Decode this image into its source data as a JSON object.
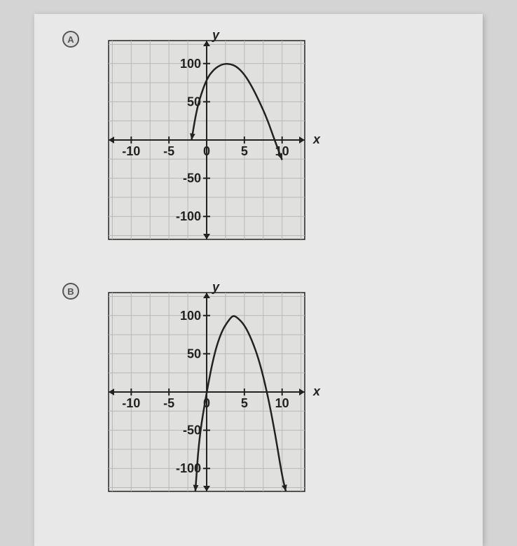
{
  "optionA": {
    "badge": "A",
    "chart": {
      "type": "line",
      "xlabel": "x",
      "ylabel": "y",
      "xlim": [
        -13,
        13
      ],
      "ylim": [
        -130,
        130
      ],
      "xtick_major": [
        -10,
        -5,
        0,
        5,
        10
      ],
      "xtick_labels": [
        "-10",
        "-5",
        "0",
        "5",
        "10"
      ],
      "ytick_major": [
        -100,
        -50,
        50,
        100
      ],
      "ytick_labels": [
        "-100",
        "-50",
        "50",
        "100"
      ],
      "x_grid_step": 2.5,
      "y_grid_step": 25,
      "background_color": "#e0e0de",
      "grid_color": "#b8b8b6",
      "axis_color": "#222222",
      "curve_color": "#222222",
      "curve_width": 2.5,
      "line_width_axis": 2,
      "line_width_grid": 1,
      "label_fontsize": 18,
      "tick_fontsize": 18,
      "curve_points": [
        [
          -2,
          0
        ],
        [
          -1.5,
          30
        ],
        [
          -1,
          52
        ],
        [
          0,
          80
        ],
        [
          1,
          93
        ],
        [
          2,
          99
        ],
        [
          3,
          100
        ],
        [
          4,
          96
        ],
        [
          5,
          86
        ],
        [
          6,
          70
        ],
        [
          7,
          50
        ],
        [
          8,
          28
        ],
        [
          9,
          0
        ],
        [
          10,
          -26
        ]
      ]
    }
  },
  "optionB": {
    "badge": "B",
    "chart": {
      "type": "line",
      "xlabel": "x",
      "ylabel": "y",
      "xlim": [
        -13,
        13
      ],
      "ylim": [
        -130,
        130
      ],
      "xtick_major": [
        -10,
        -5,
        0,
        5,
        10
      ],
      "xtick_labels": [
        "-10",
        "-5",
        "0",
        "5",
        "10"
      ],
      "ytick_major": [
        -100,
        -50,
        50,
        100
      ],
      "ytick_labels": [
        "-100",
        "-50",
        "50",
        "100"
      ],
      "x_grid_step": 2.5,
      "y_grid_step": 25,
      "background_color": "#e0e0de",
      "grid_color": "#b8b8b6",
      "axis_color": "#222222",
      "curve_color": "#222222",
      "curve_width": 2.5,
      "line_width_axis": 2,
      "line_width_grid": 1,
      "label_fontsize": 18,
      "tick_fontsize": 18,
      "curve_points": [
        [
          -1.5,
          -130
        ],
        [
          -1,
          -60
        ],
        [
          0,
          0
        ],
        [
          1,
          50
        ],
        [
          2,
          80
        ],
        [
          3,
          95
        ],
        [
          3.5,
          100
        ],
        [
          4,
          98
        ],
        [
          5,
          88
        ],
        [
          6,
          68
        ],
        [
          7,
          40
        ],
        [
          8,
          0
        ],
        [
          9,
          -50
        ],
        [
          10,
          -110
        ],
        [
          10.5,
          -130
        ]
      ]
    }
  }
}
